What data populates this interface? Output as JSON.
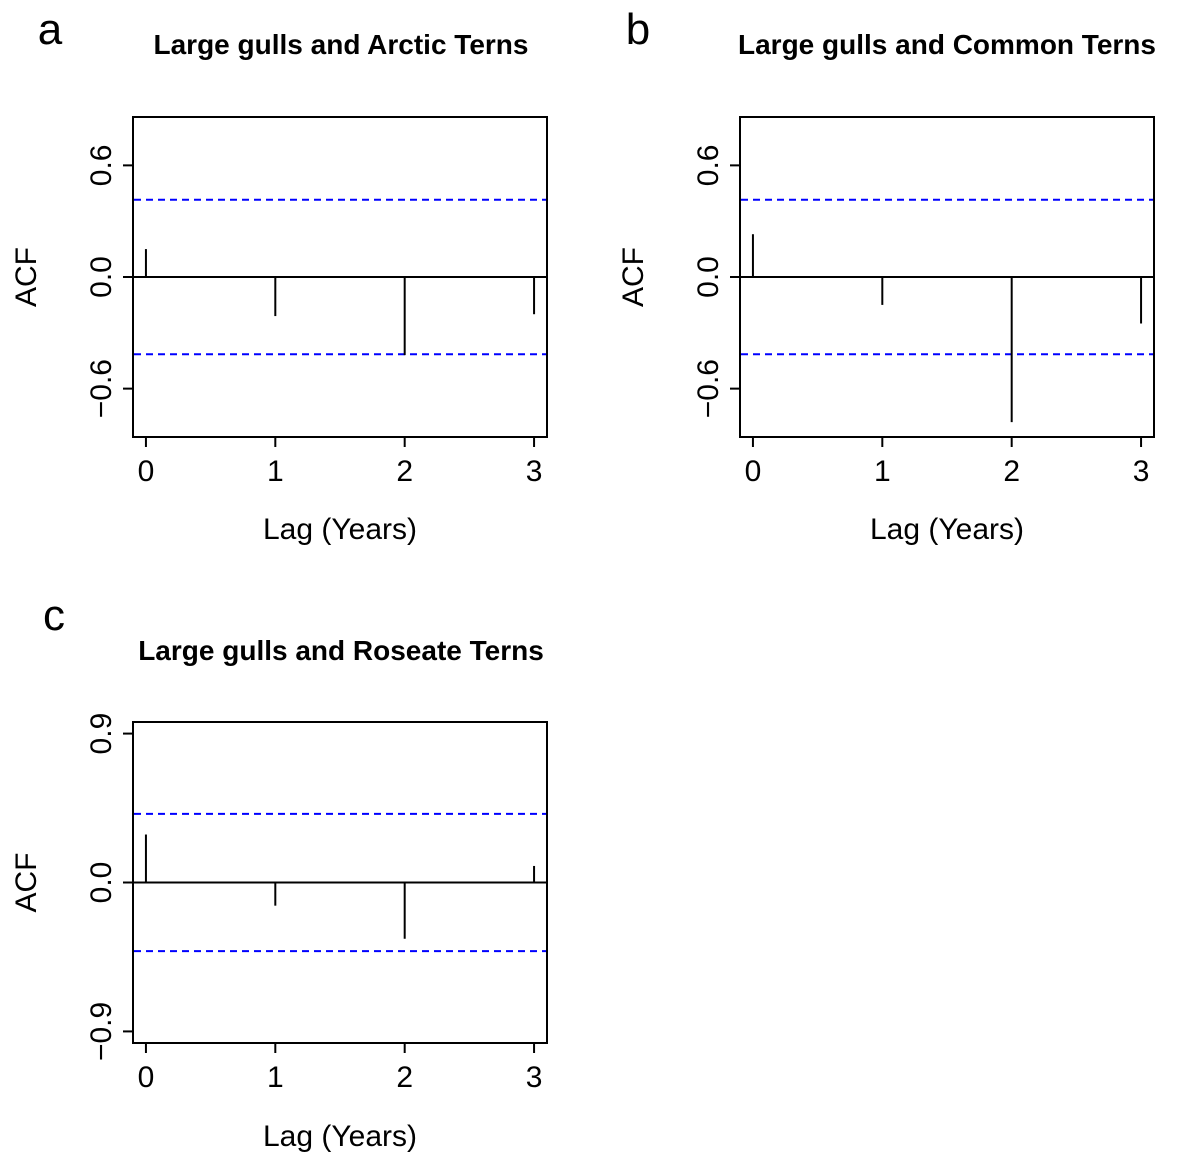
{
  "chart_data": [
    {
      "type": "bar",
      "panel_letter": "a",
      "title": "Large gulls and Arctic Terns",
      "xlabel": "Lag (Years)",
      "ylabel": "ACF",
      "x": [
        0,
        1,
        2,
        3
      ],
      "x_ticks": [
        "0",
        "1",
        "2",
        "3"
      ],
      "values": [
        0.15,
        -0.21,
        -0.42,
        -0.2
      ],
      "y_ticks": [
        -0.6,
        0.0,
        0.6
      ],
      "y_tick_labels": [
        "−0.6",
        "0.0",
        "0.6"
      ],
      "ylim": [
        -0.86,
        0.86
      ],
      "xlim": [
        -0.1,
        3.1
      ],
      "confidence_bound": 0.415,
      "confidence_color": "#0000ff",
      "grid": false
    },
    {
      "type": "bar",
      "panel_letter": "b",
      "title": "Large gulls and Common Terns",
      "xlabel": "Lag (Years)",
      "ylabel": "ACF",
      "x": [
        0,
        1,
        2,
        3
      ],
      "x_ticks": [
        "0",
        "1",
        "2",
        "3"
      ],
      "values": [
        0.23,
        -0.15,
        -0.78,
        -0.25
      ],
      "y_ticks": [
        -0.6,
        0.0,
        0.6
      ],
      "y_tick_labels": [
        "−0.6",
        "0.0",
        "0.6"
      ],
      "ylim": [
        -0.86,
        0.86
      ],
      "xlim": [
        -0.1,
        3.1
      ],
      "confidence_bound": 0.415,
      "confidence_color": "#0000ff",
      "grid": false
    },
    {
      "type": "bar",
      "panel_letter": "c",
      "title": "Large gulls and Roseate Terns",
      "xlabel": "Lag (Years)",
      "ylabel": "ACF",
      "x": [
        0,
        1,
        2,
        3
      ],
      "x_ticks": [
        "0",
        "1",
        "2",
        "3"
      ],
      "values": [
        0.29,
        -0.14,
        -0.34,
        0.1
      ],
      "y_ticks": [
        -0.9,
        0.0,
        0.9
      ],
      "y_tick_labels": [
        "−0.9",
        "0.0",
        "0.9"
      ],
      "ylim": [
        -0.97,
        0.97
      ],
      "xlim": [
        -0.1,
        3.1
      ],
      "confidence_bound": 0.415,
      "confidence_color": "#0000ff",
      "grid": false
    }
  ]
}
